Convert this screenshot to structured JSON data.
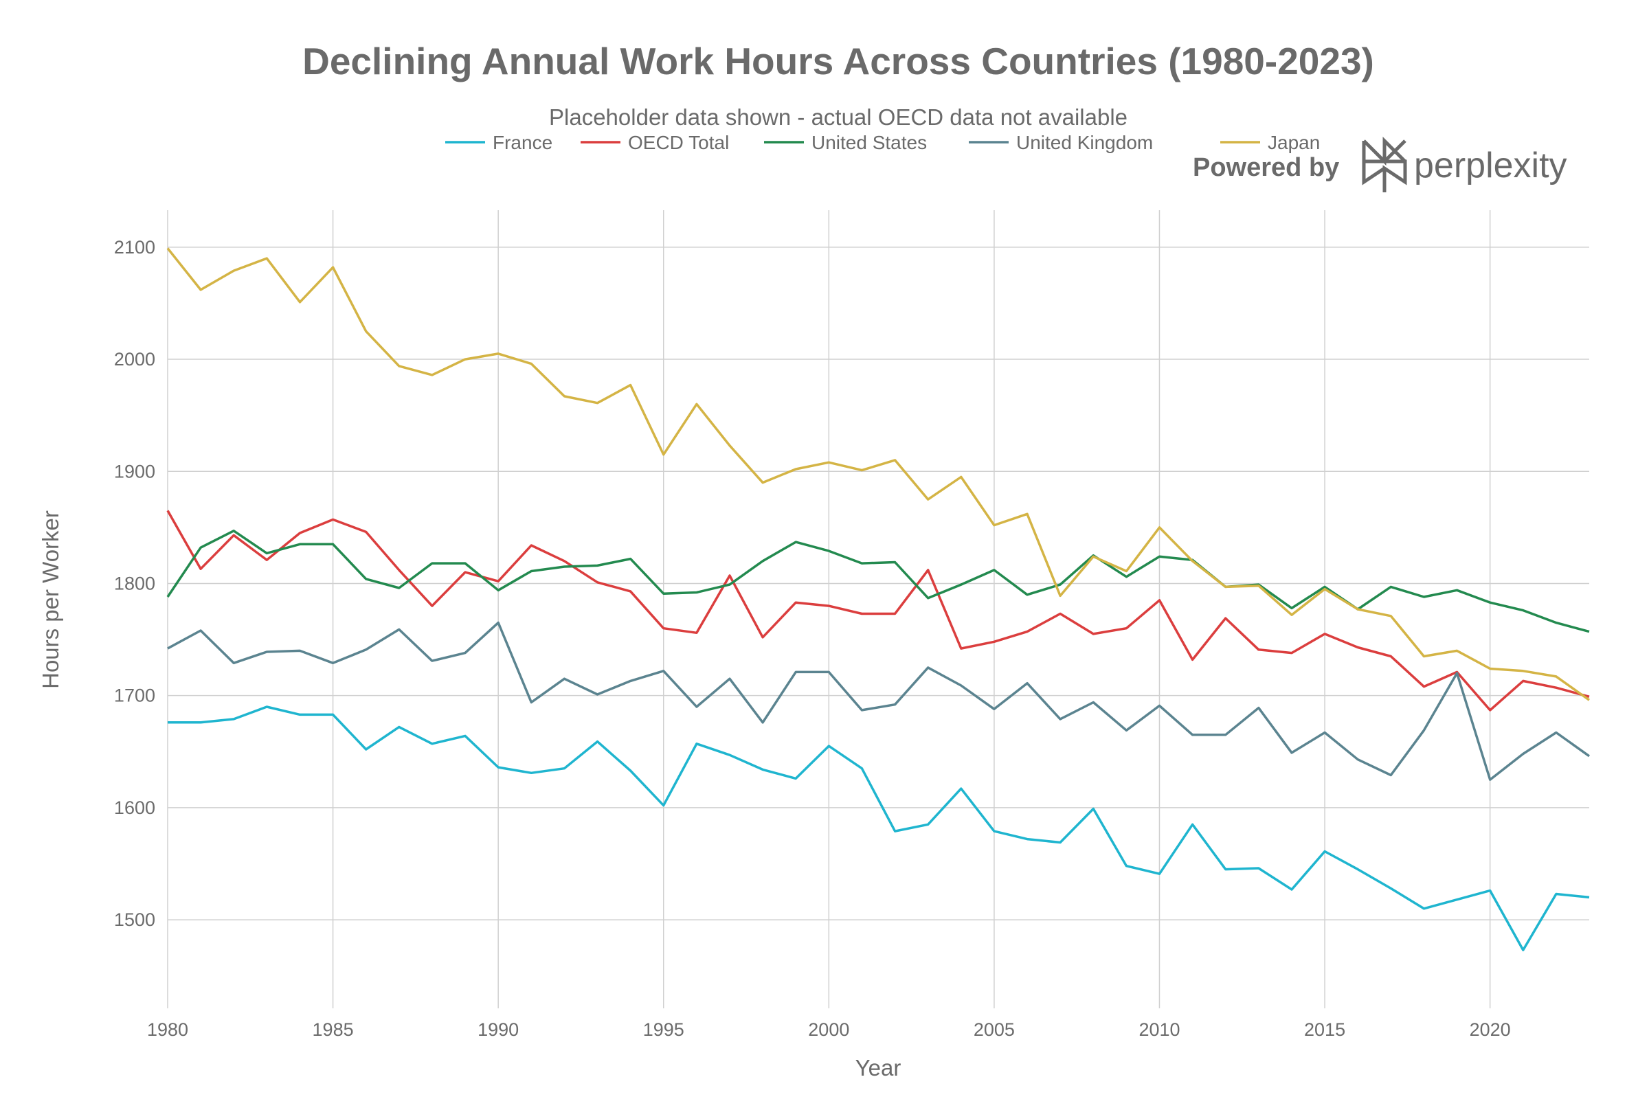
{
  "chart_data": {
    "type": "line",
    "title": "Declining Annual Work Hours Across Countries (1980-2023)",
    "subtitle": "Placeholder data shown - actual OECD data not available",
    "xlabel": "Year",
    "ylabel": "Hours per Worker",
    "xlim": [
      1980,
      2023
    ],
    "ylim": [
      1421,
      2133
    ],
    "grid": true,
    "legend_position": "top-center",
    "x_ticks": [
      1980,
      1985,
      1990,
      1995,
      2000,
      2005,
      2010,
      2015,
      2020
    ],
    "y_ticks": [
      1500,
      1600,
      1700,
      1800,
      1900,
      2000,
      2100
    ],
    "x": [
      1980,
      1981,
      1982,
      1983,
      1984,
      1985,
      1986,
      1987,
      1988,
      1989,
      1990,
      1991,
      1992,
      1993,
      1994,
      1995,
      1996,
      1997,
      1998,
      1999,
      2000,
      2001,
      2002,
      2003,
      2004,
      2005,
      2006,
      2007,
      2008,
      2009,
      2010,
      2011,
      2012,
      2013,
      2014,
      2015,
      2016,
      2017,
      2018,
      2019,
      2020,
      2021,
      2022,
      2023
    ],
    "series": [
      {
        "name": "France",
        "color": "#1fb5cf",
        "values": [
          1676,
          1676,
          1679,
          1690,
          1683,
          1683,
          1652,
          1672,
          1657,
          1664,
          1636,
          1631,
          1635,
          1659,
          1633,
          1602,
          1657,
          1647,
          1634,
          1626,
          1655,
          1635,
          1579,
          1585,
          1617,
          1579,
          1572,
          1569,
          1599,
          1548,
          1541,
          1585,
          1545,
          1546,
          1527,
          1561,
          1545,
          1528,
          1510,
          1518,
          1526,
          1473,
          1523,
          1520
        ]
      },
      {
        "name": "OECD Total",
        "color": "#db3e3e",
        "values": [
          1865,
          1813,
          1843,
          1821,
          1845,
          1857,
          1846,
          1812,
          1780,
          1810,
          1802,
          1834,
          1820,
          1801,
          1793,
          1760,
          1756,
          1807,
          1752,
          1783,
          1780,
          1773,
          1773,
          1812,
          1742,
          1748,
          1757,
          1773,
          1755,
          1760,
          1785,
          1732,
          1769,
          1741,
          1738,
          1755,
          1743,
          1735,
          1708,
          1721,
          1687,
          1713,
          1707,
          1699
        ]
      },
      {
        "name": "United States",
        "color": "#238a4f",
        "values": [
          1788,
          1832,
          1847,
          1827,
          1835,
          1835,
          1804,
          1796,
          1818,
          1818,
          1794,
          1811,
          1815,
          1816,
          1822,
          1791,
          1792,
          1799,
          1820,
          1837,
          1829,
          1818,
          1819,
          1787,
          1799,
          1812,
          1790,
          1799,
          1825,
          1806,
          1824,
          1821,
          1797,
          1799,
          1778,
          1797,
          1777,
          1797,
          1788,
          1794,
          1783,
          1776,
          1765,
          1757
        ]
      },
      {
        "name": "United Kingdom",
        "color": "#5b8490",
        "values": [
          1742,
          1758,
          1729,
          1739,
          1740,
          1729,
          1741,
          1759,
          1731,
          1738,
          1765,
          1694,
          1715,
          1701,
          1713,
          1722,
          1690,
          1715,
          1676,
          1721,
          1721,
          1687,
          1692,
          1725,
          1709,
          1688,
          1711,
          1679,
          1694,
          1669,
          1691,
          1665,
          1665,
          1689,
          1649,
          1667,
          1643,
          1629,
          1669,
          1720,
          1625,
          1648,
          1667,
          1646
        ]
      },
      {
        "name": "Japan",
        "color": "#d4b445",
        "values": [
          2099,
          2062,
          2079,
          2090,
          2051,
          2082,
          2025,
          1994,
          1986,
          2000,
          2005,
          1996,
          1967,
          1961,
          1977,
          1915,
          1960,
          1923,
          1890,
          1902,
          1908,
          1901,
          1910,
          1875,
          1895,
          1852,
          1862,
          1789,
          1824,
          1811,
          1850,
          1820,
          1797,
          1798,
          1772,
          1795,
          1777,
          1771,
          1735,
          1740,
          1724,
          1722,
          1717,
          1696
        ]
      }
    ]
  },
  "watermark": {
    "prefix": "Powered by",
    "brand": "perplexity"
  }
}
